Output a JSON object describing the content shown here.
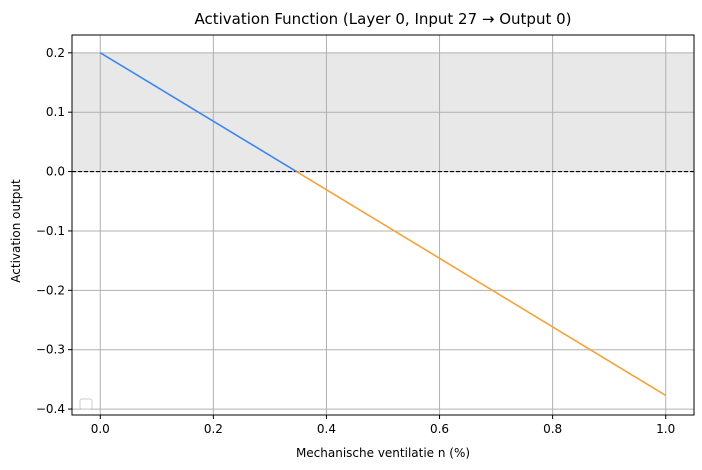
{
  "chart_data": {
    "type": "line",
    "title": "Activation Function (Layer 0, Input 27 → Output 0)",
    "xlabel": "Mechanische ventilatie n (%)",
    "ylabel": "Activation output",
    "xlim": [
      -0.05,
      1.05
    ],
    "ylim": [
      -0.41,
      0.23
    ],
    "x_ticks": [
      0.0,
      0.2,
      0.4,
      0.6,
      0.8,
      1.0
    ],
    "x_tick_labels": [
      "0.0",
      "0.2",
      "0.4",
      "0.6",
      "0.8",
      "1.0"
    ],
    "y_ticks": [
      -0.4,
      -0.3,
      -0.2,
      -0.1,
      0.0,
      0.1,
      0.2
    ],
    "y_tick_labels": [
      "−0.4",
      "−0.3",
      "−0.2",
      "−0.1",
      "0.0",
      "0.1",
      "0.2"
    ],
    "grid": true,
    "shaded_band": {
      "y_from": 0.0,
      "y_to": 0.2,
      "color": "#e8e8e8"
    },
    "reference_line": {
      "y": 0.0,
      "style": "dashed",
      "color": "#000000"
    },
    "legend": {
      "placement": "lower-left",
      "entries": []
    },
    "series": [
      {
        "color": "#3b87f0",
        "x": [
          0.0,
          0.347
        ],
        "y": [
          0.2,
          0.0
        ]
      },
      {
        "color": "#f5a23a",
        "x": [
          0.347,
          1.0
        ],
        "y": [
          0.0,
          -0.377
        ]
      }
    ]
  }
}
